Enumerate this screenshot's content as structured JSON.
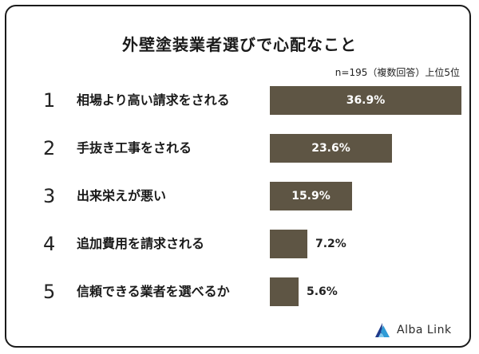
{
  "chart_data": {
    "type": "bar",
    "orientation": "horizontal",
    "title": "外壁塗装業者選びで心配なこと",
    "note": "n=195（複数回答）上位5位",
    "categories": [
      "相場より高い請求をされる",
      "手抜き工事をされる",
      "出来栄えが悪い",
      "追加費用を請求される",
      "信頼できる業者を選べるか"
    ],
    "ranks": [
      "1",
      "2",
      "3",
      "4",
      "5"
    ],
    "values": [
      36.9,
      23.6,
      15.9,
      7.2,
      5.6
    ],
    "value_labels": [
      "36.9%",
      "23.6%",
      "15.9%",
      "7.2%",
      "5.6%"
    ],
    "unit": "%",
    "xlim": [
      0,
      40
    ],
    "grid": false,
    "legend": "none",
    "bar_color": "#5e5544"
  },
  "logo": {
    "text": "Alba Link",
    "icon": "alba-link-logo-icon"
  }
}
